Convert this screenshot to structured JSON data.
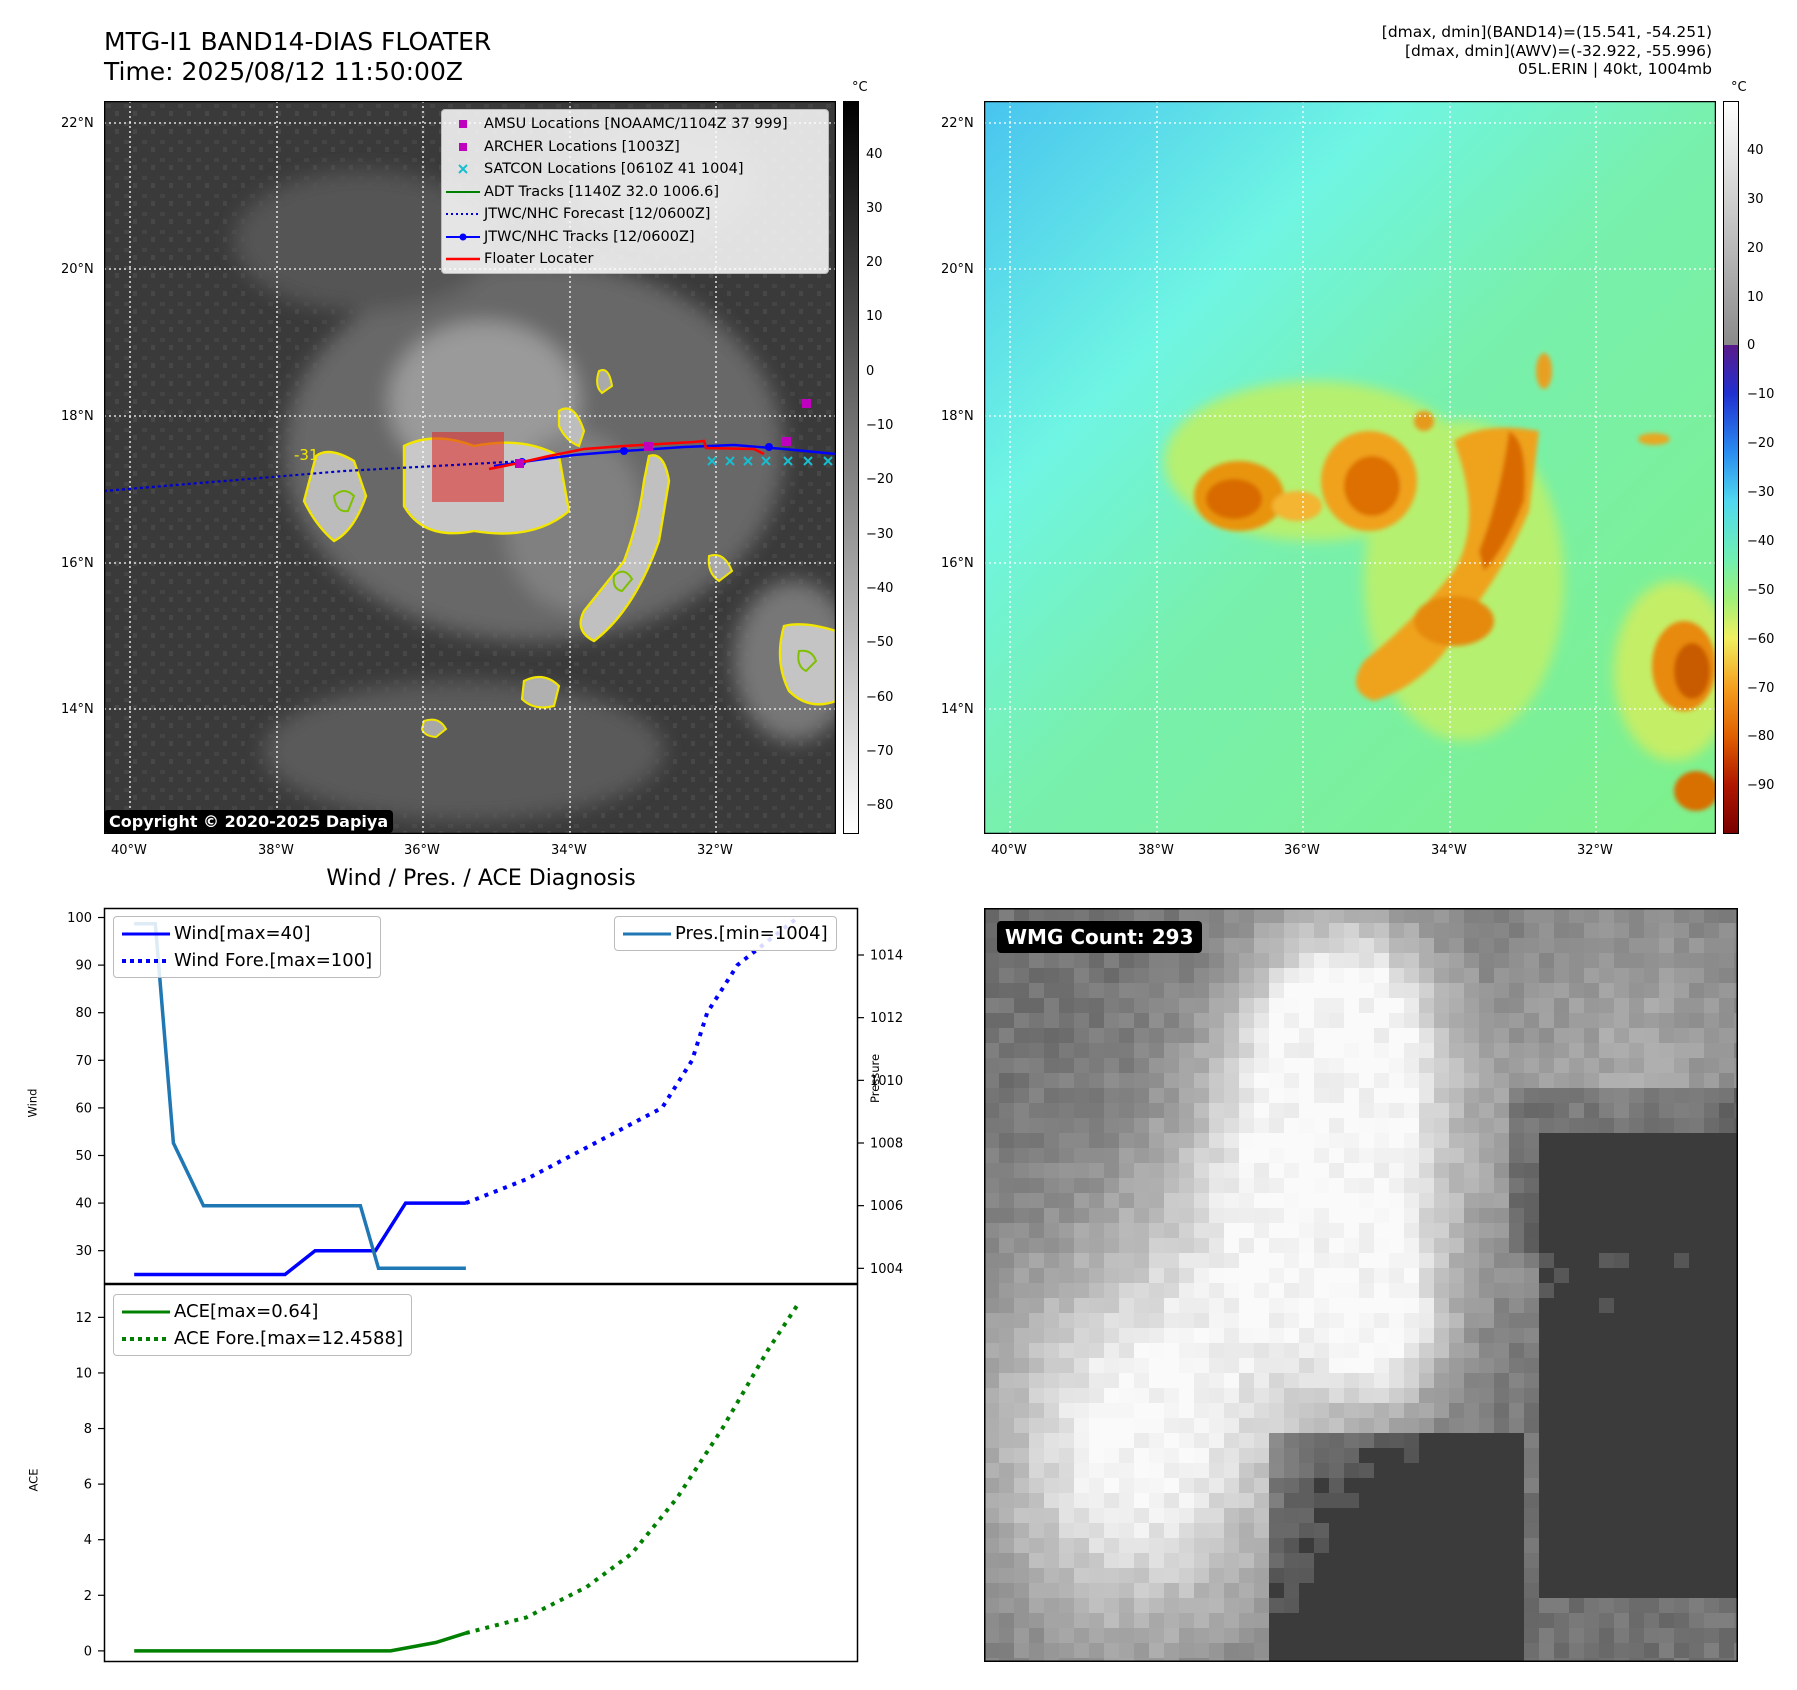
{
  "header": {
    "title_line1": "MTG-I1 BAND14-DIAS FLOATER",
    "title_line2": "Time: 2025/08/12 11:50:00Z",
    "info_line1": "[dmax, dmin](BAND14)=(15.541, -54.251)",
    "info_line2": "[dmax, dmin](AWV)=(-32.922, -55.996)",
    "info_line3": "05L.ERIN | 40kt, 1004mb"
  },
  "ir_map": {
    "copyright": "Copyright © 2020-2025 Dapiya",
    "lat_labels": [
      "22°N",
      "20°N",
      "18°N",
      "16°N",
      "14°N"
    ],
    "lon_labels": [
      "40°W",
      "38°W",
      "36°W",
      "34°W",
      "32°W"
    ],
    "contour_label": "-31",
    "legend": [
      {
        "label": "AMSU Locations [NOAAMC/1104Z 37 999]",
        "symbol": "square",
        "color": "#bf00bf"
      },
      {
        "label": "ARCHER Locations [1003Z]",
        "symbol": "square",
        "color": "#bf00bf"
      },
      {
        "label": "SATCON Locations [0610Z 41 1004]",
        "symbol": "x",
        "color": "#17becf"
      },
      {
        "label": "ADT Tracks [1140Z 32.0 1006.6]",
        "symbol": "line",
        "color": "#008000"
      },
      {
        "label": "JTWC/NHC Forecast [12/0600Z]",
        "symbol": "dotted",
        "color": "#0000cd"
      },
      {
        "label": "JTWC/NHC Tracks [12/0600Z]",
        "symbol": "line-dot",
        "color": "#0000ff"
      },
      {
        "label": "Floater Locater",
        "symbol": "line",
        "color": "#ff0000"
      }
    ],
    "colorbar": {
      "unit": "°C",
      "ticks": [
        "40",
        "30",
        "20",
        "10",
        "0",
        "−10",
        "−20",
        "−30",
        "−40",
        "−50",
        "−60",
        "−70",
        "−80"
      ]
    },
    "colors": {
      "contour": "#f2e600",
      "contour_inner": "#7fc000",
      "track": "#0000ff",
      "floater": "#ff0000"
    }
  },
  "wv_map": {
    "lat_labels": [
      "22°N",
      "20°N",
      "18°N",
      "16°N",
      "14°N"
    ],
    "lon_labels": [
      "40°W",
      "38°W",
      "36°W",
      "34°W",
      "32°W"
    ],
    "colorbar": {
      "unit": "°C",
      "ticks": [
        "40",
        "30",
        "20",
        "10",
        "0",
        "−10",
        "−20",
        "−30",
        "−40",
        "−50",
        "−60",
        "−70",
        "−80",
        "−90"
      ]
    }
  },
  "diagnosis": {
    "title": "Wind / Pres. / ACE Diagnosis"
  },
  "wmg": {
    "badge": "WMG Count: 293"
  },
  "chart_data": [
    {
      "type": "line",
      "id": "wind-pressure",
      "ylabel": "Wind",
      "y2label": "Pressure",
      "ylim": [
        23,
        102
      ],
      "y2lim": [
        1003.5,
        1015.5
      ],
      "yticks": [
        30,
        40,
        50,
        60,
        70,
        80,
        90,
        100
      ],
      "y2ticks": [
        1004,
        1006,
        1008,
        1010,
        1012,
        1014
      ],
      "xlim": [
        0,
        25
      ],
      "series": [
        {
          "name": "Wind[max=40]",
          "axis": "left",
          "style": "solid",
          "color": "#0000ff",
          "x": [
            1,
            2,
            3,
            4,
            5,
            6,
            7,
            8,
            9,
            10,
            11,
            12
          ],
          "values": [
            25,
            25,
            25,
            25,
            25,
            25,
            30,
            30,
            30,
            40,
            40,
            40
          ]
        },
        {
          "name": "Wind Fore.[max=100]",
          "axis": "left",
          "style": "dotted",
          "color": "#0000ff",
          "x": [
            12,
            14,
            15.5,
            17,
            18.5,
            19.5,
            20,
            21,
            22,
            23
          ],
          "values": [
            40,
            45,
            50,
            55,
            60,
            70,
            80,
            90,
            95,
            100
          ]
        },
        {
          "name": "Pres.[min=1004]",
          "axis": "right",
          "style": "solid",
          "color": "#1f77b4",
          "x": [
            1,
            1.7,
            2.3,
            3.3,
            4.0,
            5,
            6,
            7,
            8,
            8.5,
            9.1,
            10,
            11,
            12
          ],
          "values": [
            1015,
            1015,
            1008,
            1006,
            1006,
            1006,
            1006,
            1006,
            1006,
            1006,
            1004,
            1004,
            1004,
            1004
          ]
        }
      ]
    },
    {
      "type": "line",
      "id": "ace",
      "ylabel": "ACE",
      "ylim": [
        -0.4,
        13.2
      ],
      "yticks": [
        0,
        2,
        4,
        6,
        8,
        10,
        12
      ],
      "xlim": [
        0,
        25
      ],
      "series": [
        {
          "name": "ACE[max=0.64]",
          "style": "solid",
          "color": "#008000",
          "x": [
            1,
            5,
            8,
            9.5,
            11,
            12
          ],
          "values": [
            0,
            0,
            0,
            0,
            0.3,
            0.64
          ]
        },
        {
          "name": "ACE Fore.[max=12.4588]",
          "style": "dotted",
          "color": "#008000",
          "x": [
            12,
            14,
            16,
            17.5,
            19,
            20.5,
            22,
            23
          ],
          "values": [
            0.64,
            1.2,
            2.3,
            3.5,
            5.5,
            8.0,
            10.8,
            12.4588
          ]
        }
      ]
    }
  ]
}
